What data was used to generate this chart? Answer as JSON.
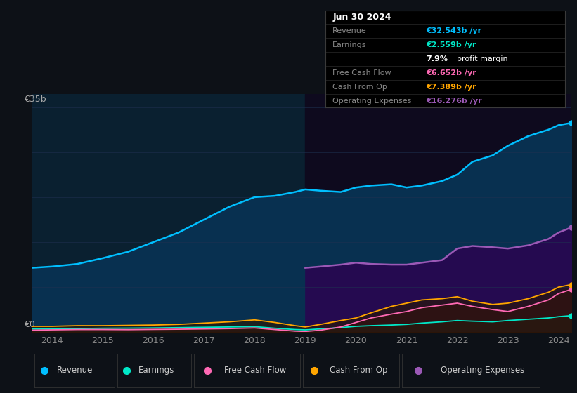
{
  "bg_color": "#0d1117",
  "plot_bg_pre2019": "#0a2030",
  "plot_bg_post2019": "#0e0a20",
  "x_years": [
    2013.6,
    2014.0,
    2014.5,
    2015.0,
    2015.5,
    2016.0,
    2016.5,
    2017.0,
    2017.5,
    2018.0,
    2018.4,
    2018.8,
    2019.0,
    2019.3,
    2019.7,
    2020.0,
    2020.3,
    2020.7,
    2021.0,
    2021.3,
    2021.7,
    2022.0,
    2022.3,
    2022.7,
    2023.0,
    2023.4,
    2023.8,
    2024.0,
    2024.25
  ],
  "revenue": [
    10.0,
    10.2,
    10.6,
    11.5,
    12.5,
    14.0,
    15.5,
    17.5,
    19.5,
    21.0,
    21.2,
    21.8,
    22.2,
    22.0,
    21.8,
    22.5,
    22.8,
    23.0,
    22.5,
    22.8,
    23.5,
    24.5,
    26.5,
    27.5,
    29.0,
    30.5,
    31.5,
    32.2,
    32.543
  ],
  "earnings": [
    0.5,
    0.5,
    0.55,
    0.6,
    0.62,
    0.65,
    0.7,
    0.75,
    0.8,
    0.85,
    0.6,
    0.4,
    0.35,
    0.5,
    0.7,
    0.9,
    1.0,
    1.1,
    1.2,
    1.4,
    1.6,
    1.8,
    1.7,
    1.6,
    1.8,
    2.0,
    2.2,
    2.4,
    2.559
  ],
  "free_cash_flow": [
    0.3,
    0.35,
    0.4,
    0.4,
    0.38,
    0.42,
    0.45,
    0.5,
    0.55,
    0.65,
    0.4,
    0.15,
    0.1,
    0.3,
    0.8,
    1.5,
    2.2,
    2.8,
    3.2,
    3.8,
    4.2,
    4.5,
    4.0,
    3.5,
    3.2,
    4.0,
    5.0,
    6.0,
    6.652
  ],
  "cash_from_op": [
    0.9,
    0.9,
    1.0,
    1.0,
    1.05,
    1.1,
    1.2,
    1.4,
    1.6,
    1.9,
    1.5,
    1.0,
    0.8,
    1.2,
    1.8,
    2.2,
    3.0,
    4.0,
    4.5,
    5.0,
    5.2,
    5.5,
    4.8,
    4.3,
    4.5,
    5.2,
    6.2,
    7.0,
    7.389
  ],
  "opex_x": [
    2019.0,
    2019.3,
    2019.7,
    2020.0,
    2020.3,
    2020.7,
    2021.0,
    2021.3,
    2021.7,
    2022.0,
    2022.3,
    2022.7,
    2023.0,
    2023.4,
    2023.8,
    2024.0,
    2024.25
  ],
  "opex": [
    10.0,
    10.2,
    10.5,
    10.8,
    10.6,
    10.5,
    10.5,
    10.8,
    11.2,
    13.0,
    13.4,
    13.2,
    13.0,
    13.5,
    14.5,
    15.5,
    16.276
  ],
  "revenue_color": "#00bfff",
  "earnings_color": "#00e8c8",
  "fcf_color": "#ff69b4",
  "cfo_color": "#ffa500",
  "opex_color": "#9b59b6",
  "x_ticks": [
    2014,
    2015,
    2016,
    2017,
    2018,
    2019,
    2020,
    2021,
    2022,
    2023,
    2024
  ],
  "ylim": [
    0,
    37
  ],
  "grid_lines_y": [
    0,
    7,
    14,
    21,
    28,
    35
  ],
  "grid_color": "#1e3050",
  "legend_items": [
    {
      "label": "Revenue",
      "color": "#00bfff"
    },
    {
      "label": "Earnings",
      "color": "#00e8c8"
    },
    {
      "label": "Free Cash Flow",
      "color": "#ff69b4"
    },
    {
      "label": "Cash From Op",
      "color": "#ffa500"
    },
    {
      "label": "Operating Expenses",
      "color": "#9b59b6"
    }
  ]
}
